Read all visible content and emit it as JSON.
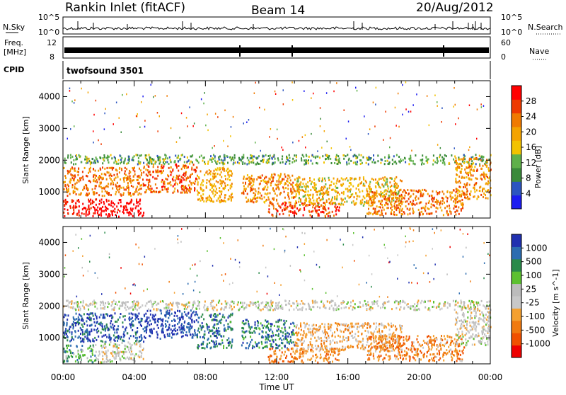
{
  "header": {
    "station": "Rankin Inlet (fitACF)",
    "beam": "Beam 14",
    "date": "20/Aug/2012"
  },
  "strip_labels": {
    "nsky": "N.Sky",
    "nsky_hi": "10^5",
    "nsky_lo": "10^0",
    "nsearch": "N.Search",
    "nsearch_hi": "10^5",
    "nsearch_lo": "10^0",
    "freq_line1": "Freq.",
    "freq_line2": "[MHz]",
    "freq_hi": "12",
    "freq_lo": "8",
    "nave": "Nave",
    "nave_hi": "60",
    "nave_lo": "0",
    "cpid": "CPID",
    "cpid_name": "twofsound 3501"
  },
  "colors": {
    "power": [
      "#1c1cf0",
      "#2c55c0",
      "#3a8a3a",
      "#5fb04a",
      "#f2c200",
      "#f4a300",
      "#f07a00",
      "#ee3a00",
      "#ff0000"
    ],
    "velocity": [
      "#ee0000",
      "#f05000",
      "#f07a10",
      "#f4a030",
      "#c8c8c8",
      "#bcbcbc",
      "#5cc030",
      "#2a8a4a",
      "#2c6cb0",
      "#2030b0"
    ]
  },
  "chart_data": [
    {
      "type": "heatmap",
      "name": "power-panel",
      "ylabel": "Slant Range [km]",
      "xlabel": "",
      "x_ticks": [
        "00:00",
        "04:00",
        "08:00",
        "12:00",
        "16:00",
        "20:00",
        "00:00"
      ],
      "y_ticks": [
        1000,
        2000,
        3000,
        4000
      ],
      "ylim": [
        180,
        4500
      ],
      "xlim_hours": [
        0,
        24
      ],
      "colorbar_label": "Power [dB]",
      "colorbar_ticks": [
        "4",
        "8",
        "12",
        "16",
        "20",
        "24",
        "28"
      ],
      "band_regions": [
        {
          "t0": 0.0,
          "t1": 1.8,
          "r0": 250,
          "r1": 800,
          "level": 8
        },
        {
          "t0": 1.8,
          "t1": 4.5,
          "r0": 250,
          "r1": 800,
          "level": 8.8
        },
        {
          "t0": 0.0,
          "t1": 4.5,
          "r0": 900,
          "r1": 1800,
          "level": 6
        },
        {
          "t0": 4.5,
          "t1": 7.5,
          "r0": 1000,
          "r1": 1900,
          "level": 6.5
        },
        {
          "t0": 7.5,
          "t1": 9.5,
          "r0": 700,
          "r1": 1800,
          "level": 5
        },
        {
          "t0": 10.0,
          "t1": 13.0,
          "r0": 700,
          "r1": 1600,
          "level": 5.5
        },
        {
          "t0": 11.5,
          "t1": 15.5,
          "r0": 250,
          "r1": 700,
          "level": 7
        },
        {
          "t0": 13.0,
          "t1": 19.0,
          "r0": 600,
          "r1": 1500,
          "level": 4.5
        },
        {
          "t0": 17.0,
          "t1": 22.5,
          "r0": 300,
          "r1": 1100,
          "level": 6
        },
        {
          "t0": 0.0,
          "t1": 24.0,
          "r0": 1900,
          "r1": 2200,
          "level": 2.5
        },
        {
          "t0": 22.0,
          "t1": 24.0,
          "r0": 800,
          "r1": 2100,
          "level": 5.5
        }
      ]
    },
    {
      "type": "heatmap",
      "name": "velocity-panel",
      "ylabel": "Slant Range [km]",
      "xlabel": "Time UT",
      "x_ticks": [
        "00:00",
        "04:00",
        "08:00",
        "12:00",
        "16:00",
        "20:00",
        "00:00"
      ],
      "y_ticks": [
        1000,
        2000,
        3000,
        4000
      ],
      "ylim": [
        180,
        4500
      ],
      "xlim_hours": [
        0,
        24
      ],
      "colorbar_label": "Velocity [m s^-1]",
      "colorbar_ticks": [
        "1000",
        "500",
        "100",
        "25",
        "-25",
        "-100",
        "-500",
        "-1000"
      ],
      "band_regions": [
        {
          "t0": 0.0,
          "t1": 1.8,
          "r0": 250,
          "r1": 800,
          "level": 6.5
        },
        {
          "t0": 1.8,
          "t1": 4.5,
          "r0": 250,
          "r1": 900,
          "level": 4.5
        },
        {
          "t0": 0.0,
          "t1": 4.5,
          "r0": 900,
          "r1": 1800,
          "level": 8.3
        },
        {
          "t0": 4.5,
          "t1": 7.5,
          "r0": 1000,
          "r1": 1900,
          "level": 9
        },
        {
          "t0": 7.5,
          "t1": 9.5,
          "r0": 700,
          "r1": 1800,
          "level": 7.8
        },
        {
          "t0": 10.0,
          "t1": 13.0,
          "r0": 700,
          "r1": 1600,
          "level": 7.5
        },
        {
          "t0": 11.5,
          "t1": 15.5,
          "r0": 250,
          "r1": 700,
          "level": 2
        },
        {
          "t0": 13.0,
          "t1": 19.0,
          "r0": 600,
          "r1": 1500,
          "level": 3
        },
        {
          "t0": 17.0,
          "t1": 22.5,
          "r0": 300,
          "r1": 1100,
          "level": 2.2
        },
        {
          "t0": 0.0,
          "t1": 24.0,
          "r0": 1900,
          "r1": 2200,
          "level": 4.5
        },
        {
          "t0": 22.0,
          "t1": 24.0,
          "r0": 800,
          "r1": 2100,
          "level": 4.5
        }
      ]
    }
  ]
}
